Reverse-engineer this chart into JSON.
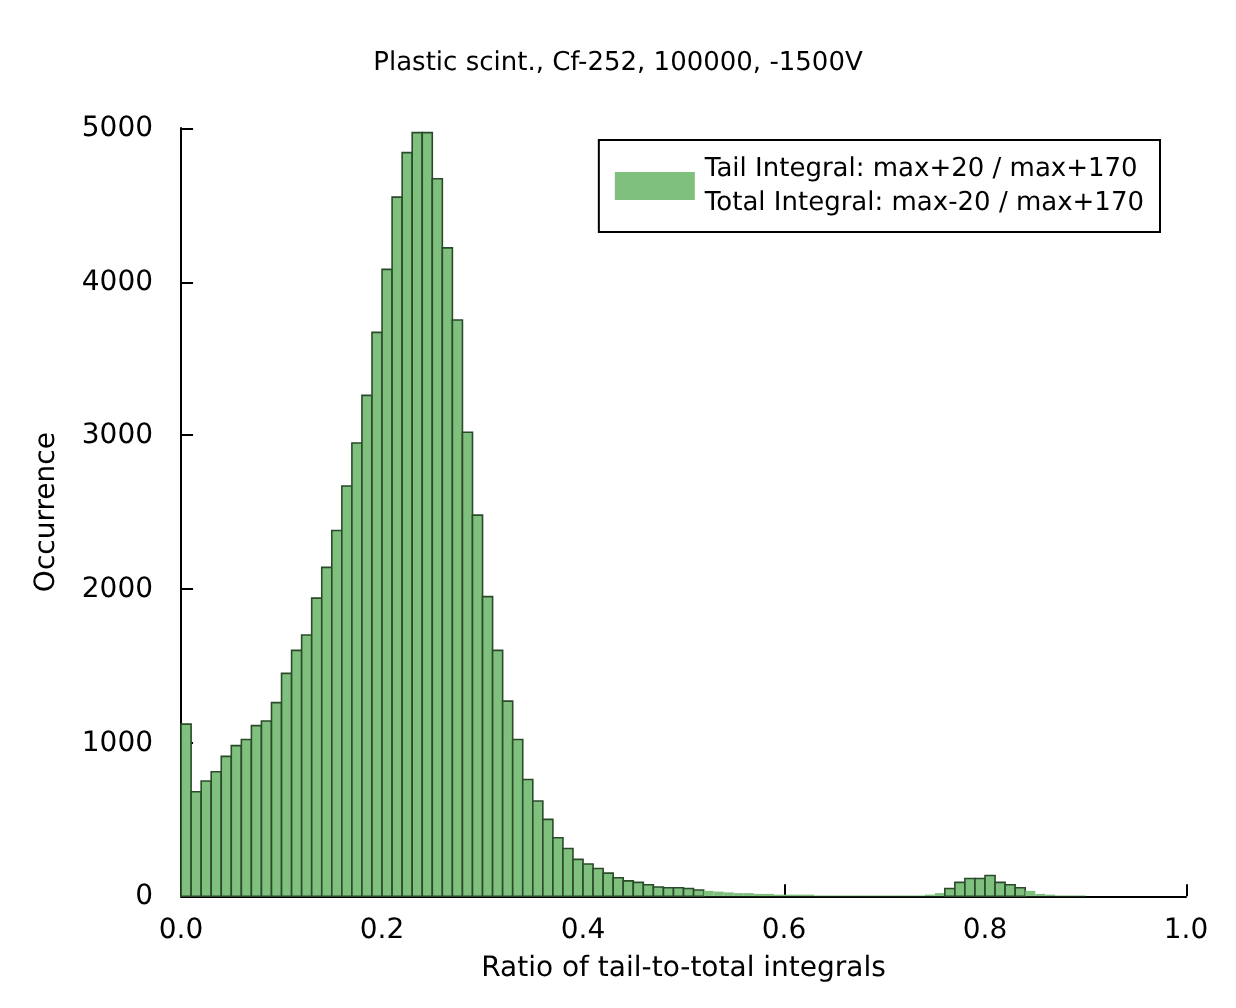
{
  "chart_data": {
    "type": "histogram",
    "title": "Plastic scint., Cf-252, 100000, -1500V",
    "xlabel": "Ratio of tail-to-total integrals",
    "ylabel": "Occurrence",
    "bins": [
      0,
      0.01,
      0.02,
      0.03,
      0.04,
      0.05,
      0.06,
      0.07,
      0.08,
      0.09,
      0.1,
      0.11,
      0.12,
      0.13,
      0.14,
      0.15,
      0.16,
      0.17,
      0.18,
      0.19,
      0.2,
      0.21,
      0.22,
      0.23,
      0.24,
      0.25,
      0.26,
      0.27,
      0.28,
      0.29,
      0.3,
      0.31,
      0.32,
      0.33,
      0.34,
      0.35,
      0.36,
      0.37,
      0.38,
      0.39,
      0.4,
      0.41,
      0.42,
      0.43,
      0.44,
      0.45,
      0.46,
      0.47,
      0.48,
      0.49,
      0.5,
      0.51,
      0.52,
      0.53,
      0.54,
      0.55,
      0.56,
      0.57,
      0.58,
      0.59,
      0.6,
      0.61,
      0.62,
      0.63,
      0.64,
      0.65,
      0.66,
      0.67,
      0.68,
      0.69,
      0.7,
      0.71,
      0.72,
      0.73,
      0.74,
      0.75,
      0.76,
      0.77,
      0.78,
      0.79,
      0.8,
      0.81,
      0.82,
      0.83,
      0.84,
      0.85,
      0.86,
      0.87,
      0.88,
      0.89,
      0.9,
      0.91,
      0.92,
      0.93,
      0.94,
      0.95,
      0.96,
      0.97,
      0.98,
      0.99,
      1
    ],
    "series": [
      {
        "name": "Tail Integral: max+20 / max+170\nTotal Integral: max-20 / max+170",
        "color": "#7fc07f",
        "values": [
          1120,
          680,
          750,
          810,
          910,
          980,
          1020,
          1110,
          1140,
          1260,
          1450,
          1600,
          1700,
          1940,
          2140,
          2380,
          2670,
          2950,
          3260,
          3670,
          4080,
          4550,
          4840,
          4970,
          4970,
          4670,
          4220,
          3750,
          3020,
          2480,
          1950,
          1600,
          1270,
          1020,
          760,
          620,
          500,
          380,
          310,
          240,
          210,
          180,
          150,
          120,
          100,
          90,
          75,
          60,
          55,
          55,
          50,
          40,
          35,
          30,
          25,
          20,
          20,
          15,
          15,
          10,
          10,
          10,
          10,
          5,
          5,
          5,
          5,
          5,
          5,
          5,
          5,
          5,
          5,
          5,
          10,
          20,
          50,
          90,
          115,
          115,
          135,
          90,
          75,
          55,
          35,
          15,
          10,
          5,
          5,
          5,
          0,
          0,
          0,
          0,
          0,
          0,
          0,
          0,
          0,
          0
        ]
      }
    ],
    "xlim": [
      0,
      1
    ],
    "xticks": [
      {
        "value": 0,
        "label": "0.0"
      },
      {
        "value": 0.2,
        "label": "0.2"
      },
      {
        "value": 0.4,
        "label": "0.4"
      },
      {
        "value": 0.6,
        "label": "0.6"
      },
      {
        "value": 0.8,
        "label": "0.8"
      },
      {
        "value": 1,
        "label": "1.0"
      }
    ],
    "ylim": [
      0,
      5000
    ],
    "yticks": [
      0,
      1000,
      2000,
      3000,
      4000,
      5000
    ],
    "legend": "top right"
  }
}
